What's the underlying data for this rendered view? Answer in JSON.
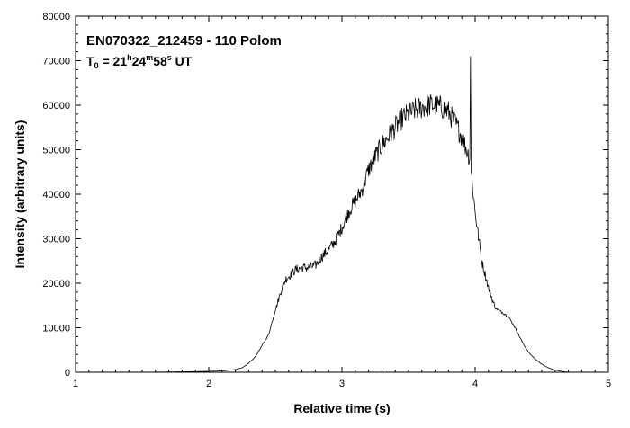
{
  "chart_data": {
    "type": "line",
    "title": "EN070322_212459 - 110 Polom",
    "subtitle": {
      "prefix": "T",
      "subscript": "0",
      "eq": " = 21",
      "h": "h",
      "mid1": "24",
      "m": "m",
      "mid2": "58",
      "s": "s",
      "suffix": " UT"
    },
    "xlabel": "Relative time (s)",
    "ylabel": "Intensity (arbitrary units)",
    "xlim": [
      1,
      5
    ],
    "ylim": [
      0,
      80000
    ],
    "xticks": [
      "1",
      "2",
      "3",
      "4",
      "5"
    ],
    "yticks": [
      "0",
      "10000",
      "20000",
      "30000",
      "40000",
      "50000",
      "60000",
      "70000",
      "80000"
    ],
    "grid": false,
    "series": [
      {
        "color": "#000000",
        "x": [
          1.0,
          1.5,
          1.8,
          2.0,
          2.1,
          2.2,
          2.25,
          2.3,
          2.35,
          2.4,
          2.45,
          2.5,
          2.55,
          2.58,
          2.6,
          2.65,
          2.7,
          2.75,
          2.8,
          2.85,
          2.9,
          2.95,
          3.0,
          3.05,
          3.1,
          3.15,
          3.2,
          3.25,
          3.3,
          3.35,
          3.4,
          3.45,
          3.5,
          3.55,
          3.6,
          3.65,
          3.7,
          3.75,
          3.8,
          3.85,
          3.9,
          3.93,
          3.96,
          3.965,
          3.97,
          4.0,
          4.05,
          4.1,
          4.15,
          4.2,
          4.25,
          4.3,
          4.35,
          4.4,
          4.45,
          4.5,
          4.55,
          4.6,
          4.65,
          4.7
        ],
        "y": [
          0,
          0,
          100,
          200,
          300,
          600,
          1000,
          2000,
          3500,
          6000,
          8500,
          14000,
          19000,
          21000,
          21500,
          23000,
          23500,
          23500,
          24000,
          26000,
          27500,
          29500,
          32500,
          36000,
          38500,
          41000,
          45500,
          48500,
          51000,
          53000,
          55000,
          57000,
          58000,
          59000,
          59500,
          60000,
          60000,
          59500,
          58500,
          56000,
          53000,
          50500,
          48000,
          72500,
          45000,
          36000,
          25000,
          19000,
          14500,
          13500,
          12500,
          10000,
          7000,
          4500,
          3000,
          1800,
          1000,
          500,
          200,
          0
        ]
      }
    ]
  }
}
